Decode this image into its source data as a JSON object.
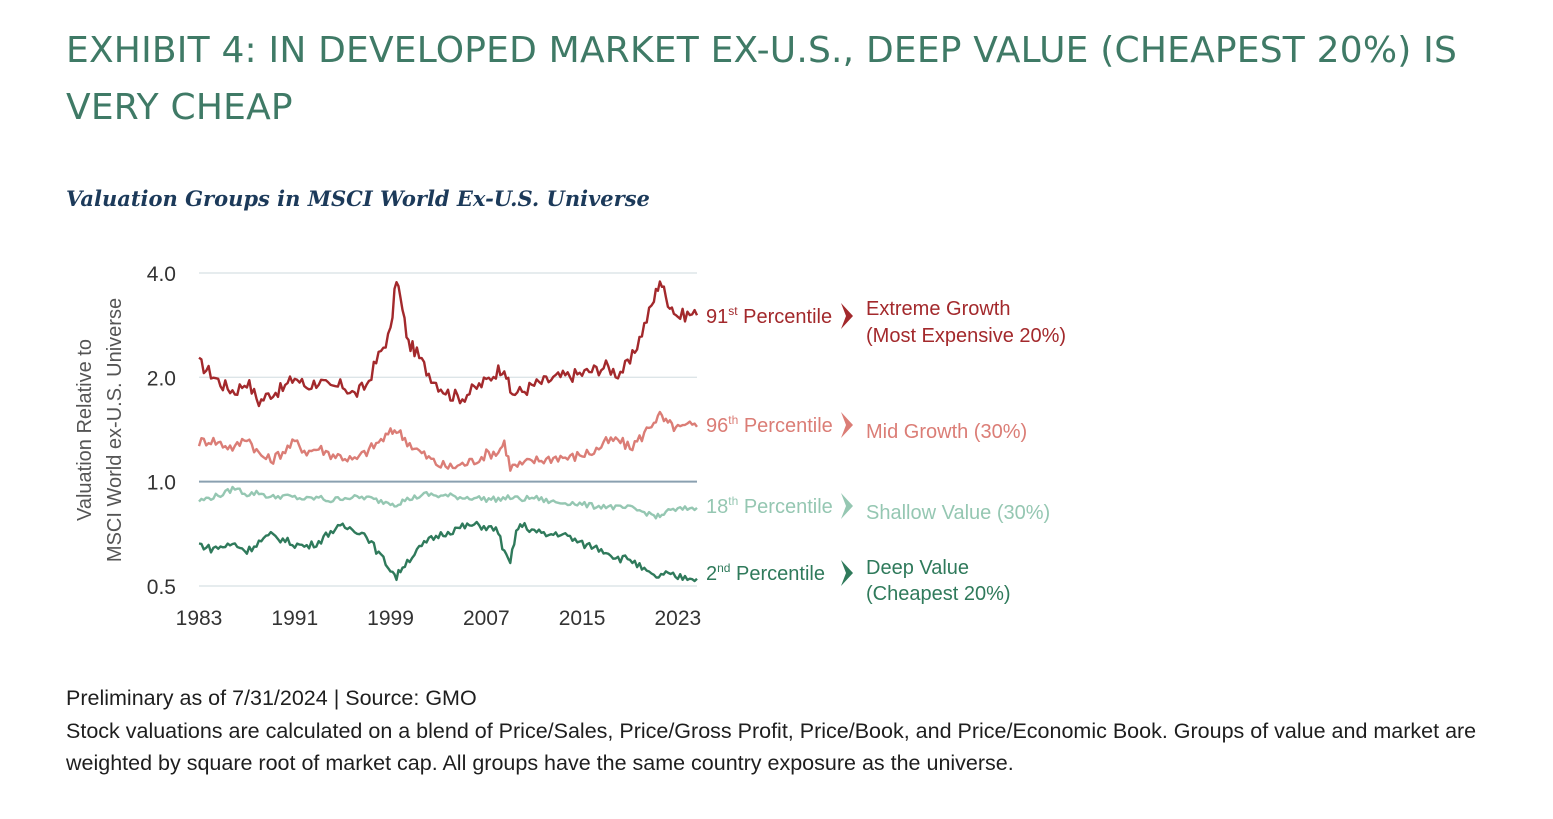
{
  "header": {
    "title": "EXHIBIT 4: IN DEVELOPED MARKET EX-U.S., DEEP VALUE (CHEAPEST 20%) IS VERY CHEAP",
    "subtitle": "Valuation Groups in MSCI World Ex-U.S. Universe"
  },
  "footer": {
    "source_line": "Preliminary as of 7/31/2024 | Source: GMO",
    "note": "Stock valuations are calculated on a blend of Price/Sales, Price/Gross Profit, Price/Book, and Price/Economic Book. Groups of value and market are weighted by square root of market cap. All groups have the same country exposure as the universe."
  },
  "colors": {
    "title": "#3f7a66",
    "subtitle": "#1c3a5a",
    "extreme_growth": "#a3292c",
    "mid_growth": "#db7d76",
    "shallow_value": "#95c7b2",
    "deep_value": "#2f7a5b",
    "grid": "#dde5e8",
    "reference_line": "#8aa0b0"
  },
  "chart_data": {
    "type": "line",
    "title": "Valuation Groups in MSCI World Ex-U.S. Universe",
    "ylabel_lines": [
      "Valuation Relative to",
      "MSCI World ex-U.S. Universe"
    ],
    "y_scale": "log",
    "ylim": [
      0.5,
      4.0
    ],
    "yticks": [
      0.5,
      1.0,
      2.0,
      4.0
    ],
    "ytick_labels": [
      "0.5",
      "1.0",
      "2.0",
      "4.0"
    ],
    "xlim": [
      1983,
      2024.6
    ],
    "xticks": [
      1983,
      1991,
      1999,
      2007,
      2015,
      2023
    ],
    "xtick_labels": [
      "1983",
      "1991",
      "1999",
      "2007",
      "2015",
      "2023"
    ],
    "grid": true,
    "reference_line": 1.0,
    "series": [
      {
        "name": "Extreme Growth (Most Expensive 20%)",
        "group_label_lines": [
          "Extreme Growth",
          "(Most Expensive 20%)"
        ],
        "percentile_num": "91",
        "percentile_sup": "st",
        "percentile_word": "Percentile",
        "color_key": "extreme_growth",
        "points": [
          [
            1983,
            2.2
          ],
          [
            1984,
            2.05
          ],
          [
            1985,
            1.9
          ],
          [
            1986,
            1.82
          ],
          [
            1987,
            1.95
          ],
          [
            1988,
            1.7
          ],
          [
            1989,
            1.8
          ],
          [
            1990,
            1.85
          ],
          [
            1991,
            2.0
          ],
          [
            1992,
            1.88
          ],
          [
            1993,
            1.95
          ],
          [
            1994,
            1.85
          ],
          [
            1995,
            1.9
          ],
          [
            1996,
            1.78
          ],
          [
            1997,
            1.9
          ],
          [
            1998,
            2.3
          ],
          [
            1999,
            2.7
          ],
          [
            1999.5,
            3.9
          ],
          [
            2000,
            3.1
          ],
          [
            2000.5,
            2.5
          ],
          [
            2001,
            2.4
          ],
          [
            2002,
            2.1
          ],
          [
            2003,
            1.9
          ],
          [
            2004,
            1.78
          ],
          [
            2005,
            1.75
          ],
          [
            2006,
            1.85
          ],
          [
            2007,
            1.95
          ],
          [
            2008,
            2.1
          ],
          [
            2008.5,
            2.15
          ],
          [
            2009,
            1.8
          ],
          [
            2010,
            1.82
          ],
          [
            2011,
            1.9
          ],
          [
            2012,
            1.95
          ],
          [
            2013,
            2.0
          ],
          [
            2014,
            2.02
          ],
          [
            2015,
            2.05
          ],
          [
            2016,
            2.1
          ],
          [
            2017,
            2.15
          ],
          [
            2018,
            2.05
          ],
          [
            2019,
            2.2
          ],
          [
            2020,
            2.7
          ],
          [
            2021,
            3.35
          ],
          [
            2021.5,
            3.85
          ],
          [
            2022,
            3.4
          ],
          [
            2022.5,
            3.2
          ],
          [
            2023,
            3.0
          ],
          [
            2024,
            3.05
          ],
          [
            2024.6,
            3.02
          ]
        ]
      },
      {
        "name": "Mid Growth (30%)",
        "group_label_lines": [
          "Mid Growth (30%)"
        ],
        "percentile_num": "96",
        "percentile_sup": "th",
        "percentile_word": "Percentile",
        "color_key": "mid_growth",
        "points": [
          [
            1983,
            1.3
          ],
          [
            1984,
            1.32
          ],
          [
            1985,
            1.28
          ],
          [
            1986,
            1.25
          ],
          [
            1987,
            1.35
          ],
          [
            1988,
            1.2
          ],
          [
            1989,
            1.15
          ],
          [
            1990,
            1.22
          ],
          [
            1991,
            1.3
          ],
          [
            1992,
            1.22
          ],
          [
            1993,
            1.25
          ],
          [
            1994,
            1.2
          ],
          [
            1995,
            1.18
          ],
          [
            1996,
            1.15
          ],
          [
            1997,
            1.22
          ],
          [
            1998,
            1.3
          ],
          [
            1999,
            1.38
          ],
          [
            1999.5,
            1.42
          ],
          [
            2000,
            1.35
          ],
          [
            2001,
            1.25
          ],
          [
            2002,
            1.18
          ],
          [
            2003,
            1.12
          ],
          [
            2004,
            1.1
          ],
          [
            2005,
            1.12
          ],
          [
            2006,
            1.15
          ],
          [
            2007,
            1.2
          ],
          [
            2008,
            1.22
          ],
          [
            2008.5,
            1.3
          ],
          [
            2009,
            1.1
          ],
          [
            2010,
            1.12
          ],
          [
            2011,
            1.15
          ],
          [
            2012,
            1.16
          ],
          [
            2013,
            1.18
          ],
          [
            2014,
            1.17
          ],
          [
            2015,
            1.2
          ],
          [
            2016,
            1.22
          ],
          [
            2017,
            1.3
          ],
          [
            2018,
            1.32
          ],
          [
            2019,
            1.25
          ],
          [
            2020,
            1.35
          ],
          [
            2021,
            1.5
          ],
          [
            2021.5,
            1.55
          ],
          [
            2022,
            1.48
          ],
          [
            2022.5,
            1.45
          ],
          [
            2023,
            1.42
          ],
          [
            2024,
            1.45
          ],
          [
            2024.6,
            1.44
          ]
        ]
      },
      {
        "name": "Shallow Value (30%)",
        "group_label_lines": [
          "Shallow Value (30%)"
        ],
        "percentile_num": "18",
        "percentile_sup": "th",
        "percentile_word": "Percentile",
        "color_key": "shallow_value",
        "points": [
          [
            1983,
            0.88
          ],
          [
            1984,
            0.9
          ],
          [
            1985,
            0.92
          ],
          [
            1986,
            0.96
          ],
          [
            1987,
            0.92
          ],
          [
            1988,
            0.93
          ],
          [
            1989,
            0.9
          ],
          [
            1990,
            0.91
          ],
          [
            1991,
            0.9
          ],
          [
            1992,
            0.89
          ],
          [
            1993,
            0.9
          ],
          [
            1994,
            0.88
          ],
          [
            1995,
            0.9
          ],
          [
            1996,
            0.9
          ],
          [
            1997,
            0.9
          ],
          [
            1998,
            0.88
          ],
          [
            1999,
            0.87
          ],
          [
            1999.5,
            0.86
          ],
          [
            2000,
            0.88
          ],
          [
            2001,
            0.9
          ],
          [
            2002,
            0.92
          ],
          [
            2003,
            0.91
          ],
          [
            2004,
            0.91
          ],
          [
            2005,
            0.9
          ],
          [
            2006,
            0.9
          ],
          [
            2007,
            0.89
          ],
          [
            2008,
            0.89
          ],
          [
            2009,
            0.9
          ],
          [
            2010,
            0.89
          ],
          [
            2011,
            0.9
          ],
          [
            2012,
            0.88
          ],
          [
            2013,
            0.87
          ],
          [
            2014,
            0.87
          ],
          [
            2015,
            0.86
          ],
          [
            2016,
            0.85
          ],
          [
            2017,
            0.85
          ],
          [
            2018,
            0.84
          ],
          [
            2019,
            0.84
          ],
          [
            2020,
            0.82
          ],
          [
            2021,
            0.8
          ],
          [
            2021.5,
            0.79
          ],
          [
            2022,
            0.82
          ],
          [
            2023,
            0.83
          ],
          [
            2024,
            0.84
          ],
          [
            2024.6,
            0.84
          ]
        ]
      },
      {
        "name": "Deep Value (Cheapest 20%)",
        "group_label_lines": [
          "Deep Value",
          "(Cheapest 20%)"
        ],
        "percentile_num": "2",
        "percentile_sup": "nd",
        "percentile_word": "Percentile",
        "color_key": "deep_value",
        "points": [
          [
            1983,
            0.66
          ],
          [
            1984,
            0.64
          ],
          [
            1985,
            0.65
          ],
          [
            1986,
            0.66
          ],
          [
            1987,
            0.63
          ],
          [
            1988,
            0.67
          ],
          [
            1989,
            0.7
          ],
          [
            1990,
            0.68
          ],
          [
            1991,
            0.66
          ],
          [
            1992,
            0.65
          ],
          [
            1993,
            0.67
          ],
          [
            1994,
            0.72
          ],
          [
            1995,
            0.74
          ],
          [
            1996,
            0.73
          ],
          [
            1997,
            0.7
          ],
          [
            1998,
            0.62
          ],
          [
            1999,
            0.56
          ],
          [
            1999.5,
            0.53
          ],
          [
            2000,
            0.57
          ],
          [
            2001,
            0.62
          ],
          [
            2002,
            0.67
          ],
          [
            2003,
            0.7
          ],
          [
            2004,
            0.72
          ],
          [
            2005,
            0.74
          ],
          [
            2006,
            0.75
          ],
          [
            2007,
            0.74
          ],
          [
            2008,
            0.72
          ],
          [
            2008.5,
            0.62
          ],
          [
            2009,
            0.58
          ],
          [
            2009.5,
            0.72
          ],
          [
            2010,
            0.75
          ],
          [
            2011,
            0.72
          ],
          [
            2012,
            0.7
          ],
          [
            2013,
            0.71
          ],
          [
            2014,
            0.69
          ],
          [
            2015,
            0.66
          ],
          [
            2016,
            0.65
          ],
          [
            2017,
            0.63
          ],
          [
            2018,
            0.6
          ],
          [
            2019,
            0.6
          ],
          [
            2020,
            0.56
          ],
          [
            2021,
            0.53
          ],
          [
            2022,
            0.54
          ],
          [
            2023,
            0.53
          ],
          [
            2024,
            0.53
          ],
          [
            2024.6,
            0.525
          ]
        ]
      }
    ]
  }
}
